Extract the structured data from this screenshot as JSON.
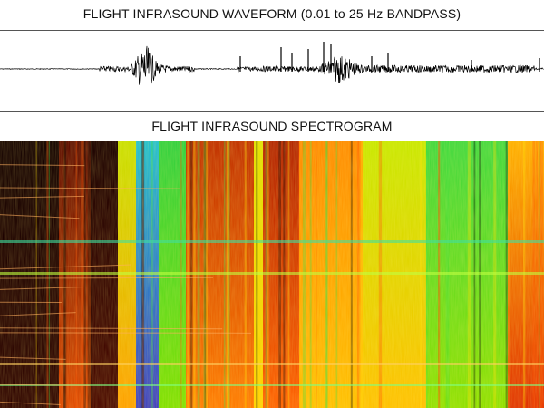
{
  "waveform": {
    "title": "FLIGHT INFRASOUND WAVEFORM (0.01 to 25 Hz BANDPASS)"
  },
  "spectrogram": {
    "title": "FLIGHT INFRASOUND SPECTROGRAM"
  }
}
